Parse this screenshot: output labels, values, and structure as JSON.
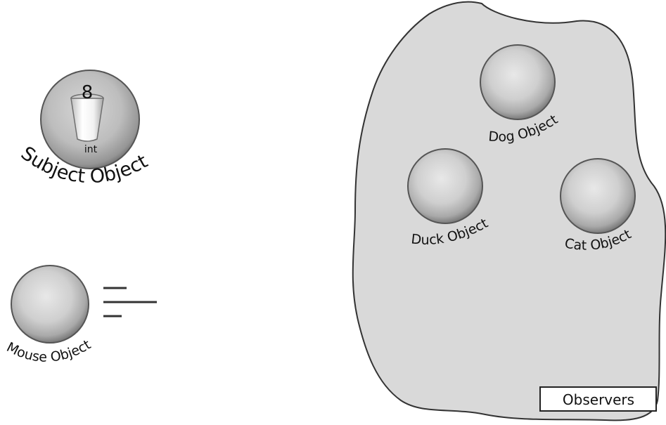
{
  "subject": {
    "value": "8",
    "type_label": "int",
    "label": "Subject Object"
  },
  "mouse": {
    "label": "Mouse Object"
  },
  "observers_group": {
    "label": "Observers",
    "members": [
      {
        "label": "Dog Object"
      },
      {
        "label": "Duck Object"
      },
      {
        "label": "Cat Object"
      }
    ]
  },
  "colors": {
    "blob_fill": "#d9d9d9",
    "outline": "#3a3a3a",
    "sphere_light": "#e6e6e6",
    "sphere_dark": "#8a8a8a"
  }
}
